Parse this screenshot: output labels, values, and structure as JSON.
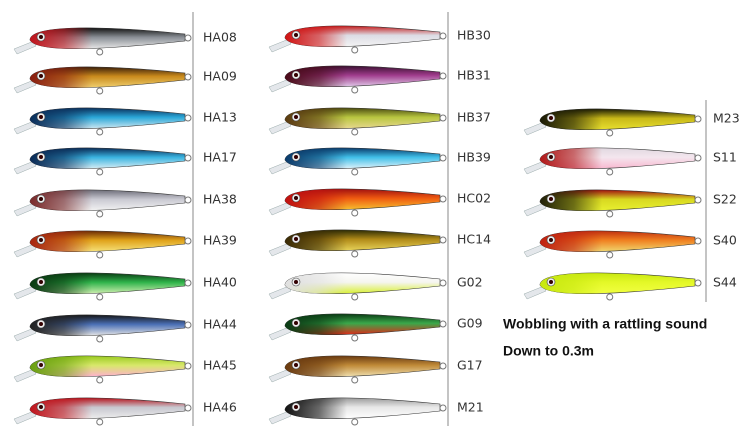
{
  "columns": [
    {
      "codes": [
        "HA08",
        "HA09",
        "HA13",
        "HA17",
        "HA38",
        "HA39",
        "HA40",
        "HA44",
        "HA45",
        "HA46"
      ]
    },
    {
      "codes": [
        "HB30",
        "HB31",
        "HB37",
        "HB39",
        "HC02",
        "HC14",
        "G02",
        "G09",
        "G17",
        "M21"
      ]
    },
    {
      "codes": [
        "M23",
        "S11",
        "S22",
        "S40",
        "S44"
      ]
    }
  ],
  "notes": [
    "Wobbling with a rattling sound",
    "Down to 0.3m"
  ]
}
